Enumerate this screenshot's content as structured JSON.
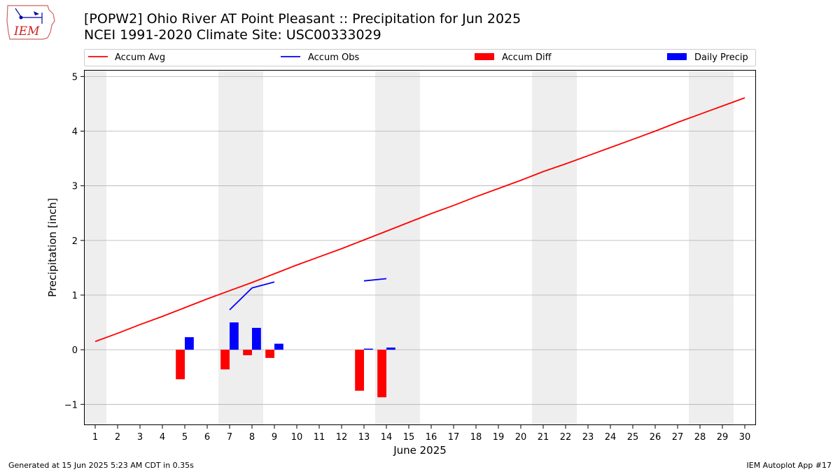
{
  "header": {
    "title_line1": "[POPW2] Ohio River  AT Point Pleasant :: Precipitation for Jun 2025",
    "title_line2": "NCEI 1991-2020 Climate Site: USC00333029",
    "logo_text": "IEM",
    "logo_icon": "iem-iowa-logo-icon"
  },
  "footer": {
    "left": "Generated at 15 Jun 2025 5:23 AM CDT in 0.35s",
    "right": "IEM Autoplot App #17"
  },
  "colors": {
    "accum_avg": "#ff0000",
    "accum_obs": "#0000ff",
    "accum_diff": "#ff0000",
    "daily_precip": "#0000ff",
    "weekend_band": "#eeeeee",
    "grid": "#b0b0b0"
  },
  "chart_data": {
    "type": "bar",
    "title": "[POPW2] Ohio River  AT Point Pleasant :: Precipitation for Jun 2025",
    "subtitle": "NCEI 1991-2020 Climate Site: USC00333029",
    "xlabel": "June 2025",
    "ylabel": "Precipitation [inch]",
    "xlim": [
      0.5,
      30.5
    ],
    "ylim": [
      -1.38,
      5.12
    ],
    "x_ticks": [
      1,
      2,
      3,
      4,
      5,
      6,
      7,
      8,
      9,
      10,
      11,
      12,
      13,
      14,
      15,
      16,
      17,
      18,
      19,
      20,
      21,
      22,
      23,
      24,
      25,
      26,
      27,
      28,
      29,
      30
    ],
    "y_ticks": [
      -1,
      0,
      1,
      2,
      3,
      4,
      5
    ],
    "y_tick_labels": [
      "−1",
      "0",
      "1",
      "2",
      "3",
      "4",
      "5"
    ],
    "grid": "y",
    "legend_position": "top",
    "weekend_bands": [
      [
        0.5,
        1.5
      ],
      [
        6.5,
        8.5
      ],
      [
        13.5,
        15.5
      ],
      [
        20.5,
        22.5
      ],
      [
        27.5,
        29.5
      ]
    ],
    "series": [
      {
        "name": "Accum Avg",
        "kind": "line",
        "x": [
          1,
          2,
          3,
          4,
          5,
          6,
          7,
          8,
          9,
          10,
          11,
          12,
          13,
          14,
          15,
          16,
          17,
          18,
          19,
          20,
          21,
          22,
          23,
          24,
          25,
          26,
          27,
          28,
          29,
          30
        ],
        "values": [
          0.15,
          0.3,
          0.46,
          0.61,
          0.77,
          0.93,
          1.08,
          1.23,
          1.39,
          1.55,
          1.7,
          1.85,
          2.01,
          2.17,
          2.33,
          2.49,
          2.64,
          2.8,
          2.95,
          3.1,
          3.26,
          3.4,
          3.55,
          3.7,
          3.85,
          4.0,
          4.16,
          4.31,
          4.46,
          4.61
        ]
      },
      {
        "name": "Accum Obs",
        "kind": "line",
        "segments": [
          {
            "x": [
              7,
              8,
              9
            ],
            "values": [
              0.73,
              1.13,
              1.24
            ]
          },
          {
            "x": [
              13,
              14
            ],
            "values": [
              1.26,
              1.3
            ]
          }
        ]
      },
      {
        "name": "Accum Diff",
        "kind": "bar",
        "x": [
          5,
          7,
          8,
          9,
          13,
          14
        ],
        "values": [
          -0.54,
          -0.36,
          -0.1,
          -0.15,
          -0.75,
          -0.87
        ]
      },
      {
        "name": "Daily Precip",
        "kind": "bar",
        "x": [
          5,
          7,
          8,
          9,
          13,
          14
        ],
        "values": [
          0.23,
          0.5,
          0.4,
          0.11,
          0.02,
          0.04
        ]
      }
    ]
  }
}
